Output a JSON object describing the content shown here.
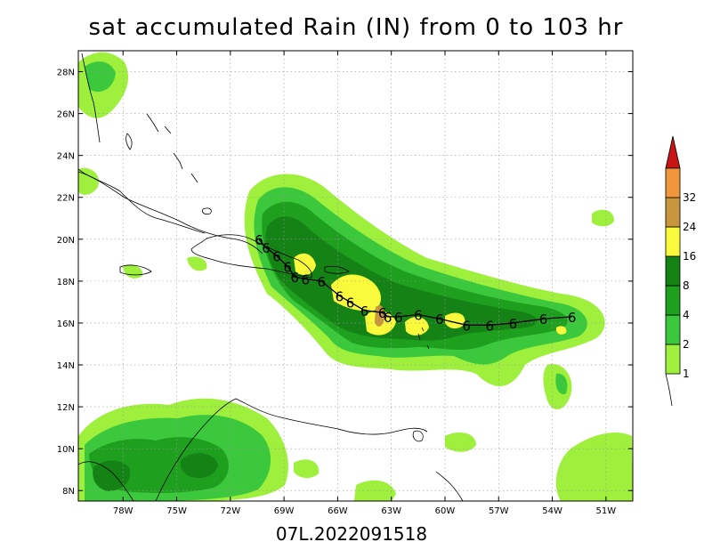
{
  "title": "sat accumulated Rain (IN) from 0 to 103 hr",
  "subtitle": "07L.2022091518",
  "map": {
    "lon_min": -80.5,
    "lon_max": -49.5,
    "lat_min": 7.5,
    "lat_max": 29,
    "lon_ticks": [
      {
        "value": -78,
        "label": "78W"
      },
      {
        "value": -75,
        "label": "75W"
      },
      {
        "value": -72,
        "label": "72W"
      },
      {
        "value": -69,
        "label": "69W"
      },
      {
        "value": -66,
        "label": "66W"
      },
      {
        "value": -63,
        "label": "63W"
      },
      {
        "value": -60,
        "label": "60W"
      },
      {
        "value": -57,
        "label": "57W"
      },
      {
        "value": -54,
        "label": "54W"
      },
      {
        "value": -51,
        "label": "51W"
      }
    ],
    "lat_ticks": [
      {
        "value": 8,
        "label": "8N"
      },
      {
        "value": 10,
        "label": "10N"
      },
      {
        "value": 12,
        "label": "12N"
      },
      {
        "value": 14,
        "label": "14N"
      },
      {
        "value": 16,
        "label": "16N"
      },
      {
        "value": 18,
        "label": "18N"
      },
      {
        "value": 20,
        "label": "20N"
      },
      {
        "value": 22,
        "label": "22N"
      },
      {
        "value": 24,
        "label": "24N"
      },
      {
        "value": 26,
        "label": "26N"
      },
      {
        "value": 28,
        "label": "28N"
      }
    ]
  },
  "colorbar": {
    "levels": [
      {
        "label": "1",
        "color": "#9ef03c"
      },
      {
        "label": "2",
        "color": "#3cc83c"
      },
      {
        "label": "4",
        "color": "#1ea01e"
      },
      {
        "label": "8",
        "color": "#148214"
      },
      {
        "label": "16",
        "color": "#fafa3c"
      },
      {
        "label": "24",
        "color": "#c8963c"
      },
      {
        "label": "32",
        "color": "#f0963c"
      }
    ],
    "top_color": "#c81414"
  },
  "colors": {
    "lt_green": "#9ef03c",
    "green": "#3cc83c",
    "dk_green": "#1ea01e",
    "dkr_green": "#148214",
    "yellow": "#fafa3c",
    "tan": "#c8963c"
  },
  "track": {
    "symbol": "6",
    "points": [
      {
        "lon": -52.9,
        "lat": 16.3
      },
      {
        "lon": -54.5,
        "lat": 16.2
      },
      {
        "lon": -56.2,
        "lat": 16.0
      },
      {
        "lon": -57.5,
        "lat": 15.9
      },
      {
        "lon": -58.8,
        "lat": 15.9
      },
      {
        "lon": -60.3,
        "lat": 16.2
      },
      {
        "lon": -61.5,
        "lat": 16.4
      },
      {
        "lon": -62.6,
        "lat": 16.3
      },
      {
        "lon": -63.2,
        "lat": 16.3
      },
      {
        "lon": -63.5,
        "lat": 16.5
      },
      {
        "lon": -64.5,
        "lat": 16.6
      },
      {
        "lon": -65.3,
        "lat": 17.0
      },
      {
        "lon": -65.9,
        "lat": 17.3
      },
      {
        "lon": -66.9,
        "lat": 18.0
      },
      {
        "lon": -67.8,
        "lat": 18.1
      },
      {
        "lon": -68.4,
        "lat": 18.2
      },
      {
        "lon": -68.8,
        "lat": 18.7
      },
      {
        "lon": -69.4,
        "lat": 19.2
      },
      {
        "lon": -70.0,
        "lat": 19.6
      },
      {
        "lon": -70.4,
        "lat": 20.0
      }
    ]
  }
}
